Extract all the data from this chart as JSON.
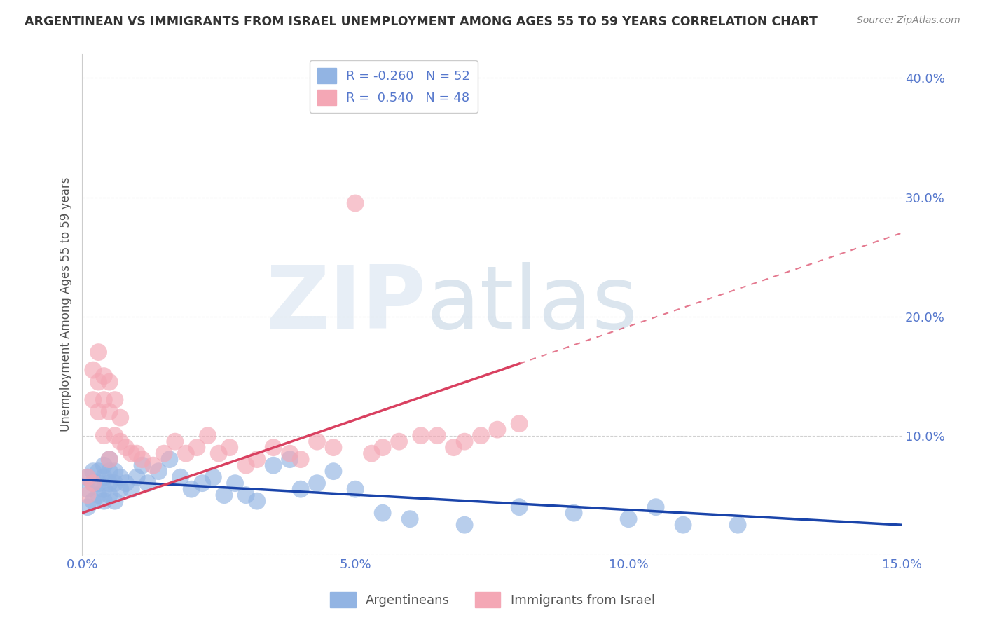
{
  "title": "ARGENTINEAN VS IMMIGRANTS FROM ISRAEL UNEMPLOYMENT AMONG AGES 55 TO 59 YEARS CORRELATION CHART",
  "source": "Source: ZipAtlas.com",
  "ylabel": "Unemployment Among Ages 55 to 59 years",
  "xlim": [
    0.0,
    0.15
  ],
  "ylim": [
    0.0,
    0.42
  ],
  "xticks": [
    0.0,
    0.05,
    0.1,
    0.15
  ],
  "yticks": [
    0.0,
    0.1,
    0.2,
    0.3,
    0.4
  ],
  "xtick_labels": [
    "0.0%",
    "5.0%",
    "10.0%",
    "15.0%"
  ],
  "ytick_labels": [
    "",
    "10.0%",
    "20.0%",
    "30.0%",
    "40.0%"
  ],
  "blue_R": -0.26,
  "blue_N": 52,
  "pink_R": 0.54,
  "pink_N": 48,
  "blue_color": "#92b4e3",
  "pink_color": "#f4a7b5",
  "blue_line_color": "#1a44aa",
  "pink_line_color": "#d94060",
  "legend_label_blue": "Argentineans",
  "legend_label_pink": "Immigrants from Israel",
  "watermark_zip": "ZIP",
  "watermark_atlas": "atlas",
  "background_color": "#ffffff",
  "grid_color": "#cccccc",
  "title_color": "#333333",
  "axis_color": "#5577cc",
  "blue_x": [
    0.001,
    0.001,
    0.001,
    0.002,
    0.002,
    0.002,
    0.003,
    0.003,
    0.003,
    0.004,
    0.004,
    0.004,
    0.004,
    0.005,
    0.005,
    0.005,
    0.005,
    0.006,
    0.006,
    0.006,
    0.007,
    0.007,
    0.008,
    0.009,
    0.01,
    0.011,
    0.012,
    0.014,
    0.016,
    0.018,
    0.02,
    0.022,
    0.024,
    0.026,
    0.028,
    0.03,
    0.032,
    0.035,
    0.038,
    0.04,
    0.043,
    0.046,
    0.05,
    0.055,
    0.06,
    0.07,
    0.08,
    0.09,
    0.1,
    0.105,
    0.11,
    0.12
  ],
  "blue_y": [
    0.04,
    0.055,
    0.065,
    0.045,
    0.06,
    0.07,
    0.05,
    0.06,
    0.07,
    0.045,
    0.055,
    0.065,
    0.075,
    0.05,
    0.06,
    0.07,
    0.08,
    0.045,
    0.06,
    0.07,
    0.055,
    0.065,
    0.06,
    0.055,
    0.065,
    0.075,
    0.06,
    0.07,
    0.08,
    0.065,
    0.055,
    0.06,
    0.065,
    0.05,
    0.06,
    0.05,
    0.045,
    0.075,
    0.08,
    0.055,
    0.06,
    0.07,
    0.055,
    0.035,
    0.03,
    0.025,
    0.04,
    0.035,
    0.03,
    0.04,
    0.025,
    0.025
  ],
  "pink_x": [
    0.001,
    0.001,
    0.002,
    0.002,
    0.002,
    0.003,
    0.003,
    0.003,
    0.004,
    0.004,
    0.004,
    0.005,
    0.005,
    0.005,
    0.006,
    0.006,
    0.007,
    0.007,
    0.008,
    0.009,
    0.01,
    0.011,
    0.013,
    0.015,
    0.017,
    0.019,
    0.021,
    0.023,
    0.025,
    0.027,
    0.03,
    0.032,
    0.035,
    0.038,
    0.04,
    0.043,
    0.046,
    0.05,
    0.053,
    0.055,
    0.058,
    0.062,
    0.065,
    0.068,
    0.07,
    0.073,
    0.076,
    0.08
  ],
  "pink_y": [
    0.05,
    0.065,
    0.06,
    0.13,
    0.155,
    0.12,
    0.145,
    0.17,
    0.13,
    0.15,
    0.1,
    0.12,
    0.145,
    0.08,
    0.1,
    0.13,
    0.115,
    0.095,
    0.09,
    0.085,
    0.085,
    0.08,
    0.075,
    0.085,
    0.095,
    0.085,
    0.09,
    0.1,
    0.085,
    0.09,
    0.075,
    0.08,
    0.09,
    0.085,
    0.08,
    0.095,
    0.09,
    0.295,
    0.085,
    0.09,
    0.095,
    0.1,
    0.1,
    0.09,
    0.095,
    0.1,
    0.105,
    0.11
  ],
  "pink_line_x0": 0.0,
  "pink_line_y0": 0.035,
  "pink_line_x1": 0.15,
  "pink_line_y1": 0.27,
  "blue_line_x0": 0.0,
  "blue_line_y0": 0.063,
  "blue_line_x1": 0.15,
  "blue_line_y1": 0.025
}
